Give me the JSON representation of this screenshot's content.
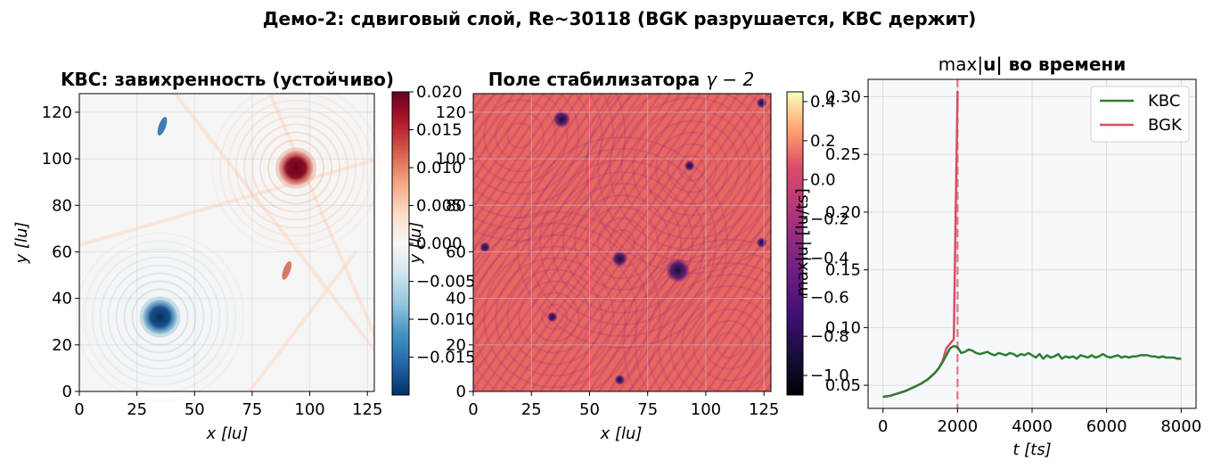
{
  "figure": {
    "suptitle": "Демо-2: сдвиговый слой, Re~30118 (BGK разрушается, KBC держит)"
  },
  "chart_data": [
    {
      "type": "heatmap",
      "title": "KBC: завихренность (устойчиво)",
      "xlabel": "x [lu]",
      "ylabel": "y [lu]",
      "xlim": [
        0,
        128
      ],
      "ylim": [
        0,
        128
      ],
      "xticks": [
        "0",
        "25",
        "50",
        "75",
        "100",
        "125"
      ],
      "yticks": [
        "0",
        "20",
        "40",
        "60",
        "80",
        "100",
        "120"
      ],
      "colormap": "RdBu_r",
      "colorbar": {
        "range": [
          -0.02,
          0.02
        ],
        "ticks": [
          "−0.015",
          "−0.010",
          "−0.005",
          "0.000",
          "0.005",
          "0.010",
          "0.015",
          "0.020"
        ]
      },
      "vortices": [
        {
          "x": 94,
          "y": 96,
          "value": 0.02
        },
        {
          "x": 35,
          "y": 32,
          "value": -0.02
        },
        {
          "x": 36,
          "y": 114,
          "value": -0.01
        },
        {
          "x": 90,
          "y": 52,
          "value": 0.01
        }
      ]
    },
    {
      "type": "heatmap",
      "title": "Поле стабилизатора γ − 2",
      "title_plain": "Поле стабилизатора ",
      "title_math": "γ − 2",
      "xlabel": "x [lu]",
      "ylabel": "y [lu]",
      "xlim": [
        0,
        128
      ],
      "ylim": [
        0,
        128
      ],
      "xticks": [
        "0",
        "25",
        "50",
        "75",
        "100",
        "125"
      ],
      "yticks": [
        "0",
        "20",
        "40",
        "60",
        "80",
        "100",
        "120"
      ],
      "colormap": "magma",
      "colorbar": {
        "range": [
          -1.1,
          0.45
        ],
        "ticks": [
          "−1.0",
          "−0.8",
          "−0.6",
          "−0.4",
          "−0.2",
          "0.0",
          "0.2",
          "0.4"
        ]
      }
    },
    {
      "type": "line",
      "title": "max|u| во времени",
      "title_pre": "max|",
      "title_bold": "u",
      "title_post": "| во времени",
      "xlabel": "t [ts]",
      "ylabel": "max|u| [lu/ts]",
      "xlim": [
        -400,
        8400
      ],
      "ylim": [
        0.03,
        0.315
      ],
      "xticks": [
        0,
        2000,
        4000,
        6000,
        8000
      ],
      "yticks": [
        0.05,
        0.1,
        0.15,
        0.2,
        0.25,
        0.3
      ],
      "ytick_labels": [
        "0.05",
        "0.10",
        "0.15",
        "0.20",
        "0.25",
        "0.30"
      ],
      "grid": true,
      "legend_placement": "top-right",
      "vline": {
        "x": 2000,
        "color": "#d64f5f",
        "style": "dashed"
      },
      "series": [
        {
          "name": "KBC",
          "color": "#2e7d32",
          "x": [
            0,
            200,
            400,
            600,
            800,
            1000,
            1200,
            1400,
            1500,
            1600,
            1700,
            1800,
            1900,
            2000,
            2100,
            2200,
            2300,
            2400,
            2500,
            2600,
            2700,
            2800,
            2900,
            3000,
            3100,
            3200,
            3300,
            3400,
            3500,
            3600,
            3700,
            3800,
            3900,
            4000,
            4100,
            4200,
            4300,
            4400,
            4500,
            4600,
            4700,
            4800,
            4900,
            5000,
            5100,
            5200,
            5300,
            5400,
            5500,
            5600,
            5700,
            5800,
            5900,
            6000,
            6100,
            6200,
            6300,
            6400,
            6500,
            6600,
            6700,
            6800,
            6900,
            7000,
            7100,
            7200,
            7300,
            7400,
            7500,
            7600,
            7700,
            7800,
            7900,
            8000
          ],
          "values": [
            0.04,
            0.041,
            0.043,
            0.045,
            0.048,
            0.051,
            0.055,
            0.061,
            0.065,
            0.07,
            0.076,
            0.082,
            0.084,
            0.083,
            0.078,
            0.079,
            0.081,
            0.08,
            0.078,
            0.077,
            0.078,
            0.079,
            0.077,
            0.076,
            0.078,
            0.077,
            0.076,
            0.078,
            0.077,
            0.075,
            0.077,
            0.076,
            0.078,
            0.076,
            0.074,
            0.077,
            0.073,
            0.076,
            0.074,
            0.075,
            0.077,
            0.073,
            0.075,
            0.074,
            0.075,
            0.073,
            0.076,
            0.075,
            0.074,
            0.076,
            0.074,
            0.075,
            0.077,
            0.075,
            0.074,
            0.075,
            0.076,
            0.074,
            0.075,
            0.074,
            0.075,
            0.075,
            0.076,
            0.076,
            0.076,
            0.075,
            0.075,
            0.074,
            0.075,
            0.074,
            0.074,
            0.074,
            0.073,
            0.073
          ]
        },
        {
          "name": "BGK",
          "color": "#d64f5f",
          "x": [
            0,
            200,
            400,
            600,
            800,
            1000,
            1200,
            1400,
            1500,
            1600,
            1700,
            1800,
            1900,
            1950,
            2000
          ],
          "values": [
            0.04,
            0.041,
            0.043,
            0.045,
            0.048,
            0.051,
            0.055,
            0.061,
            0.065,
            0.071,
            0.082,
            0.086,
            0.09,
            0.2,
            0.305
          ]
        }
      ]
    }
  ]
}
